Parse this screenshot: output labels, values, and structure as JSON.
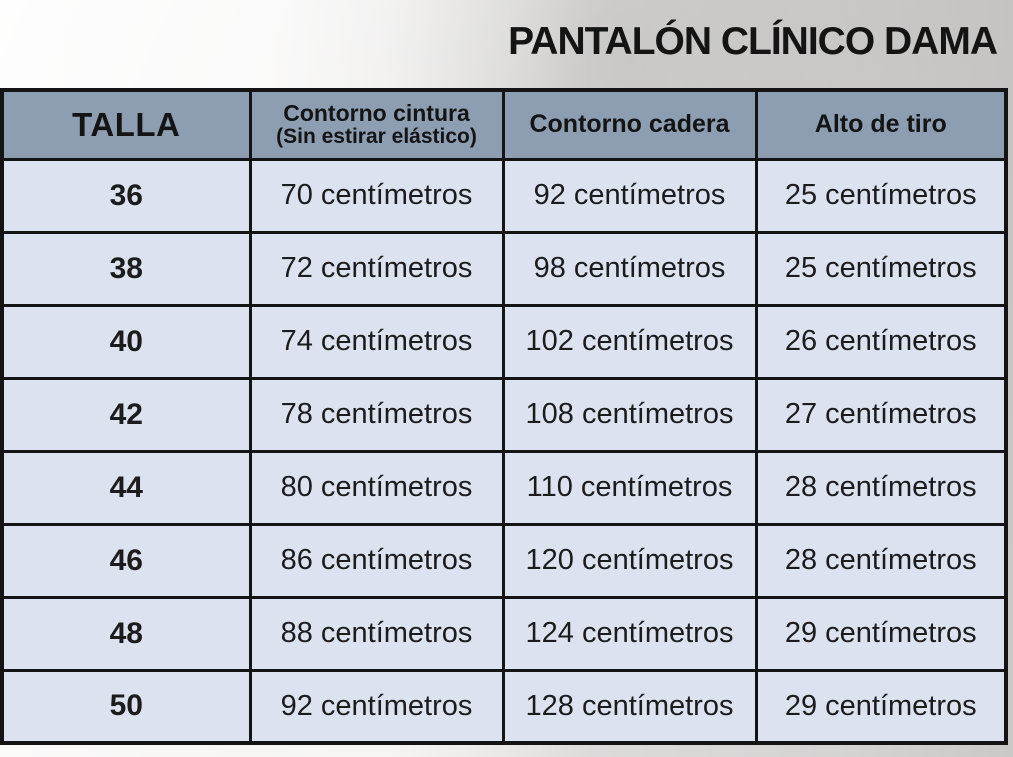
{
  "title": "PANTALÓN CLÍNICO DAMA",
  "chart_data": {
    "type": "table",
    "title": "PANTALÓN CLÍNICO DAMA",
    "headers": [
      {
        "label": "TALLA",
        "sublabel": ""
      },
      {
        "label": "Contorno cintura",
        "sublabel": "(Sin estirar elástico)"
      },
      {
        "label": "Contorno cadera",
        "sublabel": ""
      },
      {
        "label": "Alto de tiro",
        "sublabel": ""
      }
    ],
    "rows": [
      [
        "36",
        "70 centímetros",
        "92 centímetros",
        "25 centímetros"
      ],
      [
        "38",
        "72 centímetros",
        "98 centímetros",
        "25 centímetros"
      ],
      [
        "40",
        "74 centímetros",
        "102 centímetros",
        "26 centímetros"
      ],
      [
        "42",
        "78 centímetros",
        "108 centímetros",
        "27 centímetros"
      ],
      [
        "44",
        "80 centímetros",
        "110 centímetros",
        "28 centímetros"
      ],
      [
        "46",
        "86 centímetros",
        "120 centímetros",
        "28 centímetros"
      ],
      [
        "48",
        "88 centímetros",
        "124 centímetros",
        "29 centímetros"
      ],
      [
        "50",
        "92 centímetros",
        "128 centímetros",
        "29 centímetros"
      ]
    ],
    "units_note": "centímetros",
    "colors": {
      "header_bg": "#8d9eb3",
      "cell_bg": "#dde2f1",
      "border": "#141414",
      "title_color": "#141414"
    }
  }
}
